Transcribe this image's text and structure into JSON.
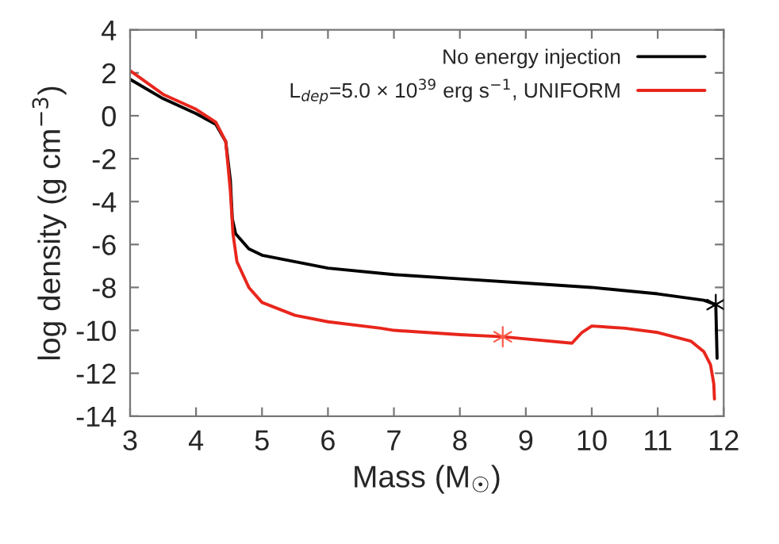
{
  "chart_data": {
    "type": "line",
    "xlabel": "Mass (M$_{☉}$)",
    "ylabel": "log density (g cm$^{−3}$)",
    "xlim": [
      3,
      12
    ],
    "ylim": [
      -14,
      4
    ],
    "xticks": [
      3,
      4,
      5,
      6,
      7,
      8,
      9,
      10,
      11,
      12
    ],
    "yticks": [
      -14,
      -12,
      -10,
      -8,
      -6,
      -4,
      -2,
      0,
      2,
      4
    ],
    "grid": false,
    "legend": "top right",
    "line_style": "solid",
    "marker": "none",
    "series": [
      {
        "name": "No energy injection",
        "color": "#000000",
        "x": [
          3,
          3.5,
          4,
          4.3,
          4.45,
          4.52,
          4.55,
          4.6,
          4.8,
          5,
          6,
          7,
          8,
          9,
          10,
          11,
          11.7,
          11.88,
          11.9
        ],
        "values": [
          1.7,
          0.8,
          0.1,
          -0.4,
          -1.2,
          -3,
          -4.8,
          -5.5,
          -6.2,
          -6.5,
          -7.1,
          -7.4,
          -7.6,
          -7.8,
          -8.0,
          -8.3,
          -8.6,
          -8.8,
          -11.3
        ]
      },
      {
        "name": "L$_{dep}$=5.0 × 10$^{39}$ erg s$^{−1}$, UNIFORM",
        "color": "#e8261c",
        "x": [
          3,
          3.5,
          4,
          4.3,
          4.45,
          4.52,
          4.56,
          4.62,
          4.8,
          5,
          5.5,
          6,
          6.8,
          7,
          8,
          8.65,
          9,
          9.7,
          9.85,
          10,
          10.5,
          11,
          11.5,
          11.7,
          11.8,
          11.85,
          11.86
        ],
        "values": [
          2.1,
          1.0,
          0.3,
          -0.3,
          -1.2,
          -3.5,
          -5.5,
          -6.8,
          -8.0,
          -8.7,
          -9.3,
          -9.6,
          -9.9,
          -10.0,
          -10.2,
          -10.3,
          -10.4,
          -10.6,
          -10.1,
          -9.8,
          -9.9,
          -10.1,
          -10.5,
          -11.0,
          -11.6,
          -12.5,
          -13.2
        ]
      },
      {
        "type": "scatter",
        "marker": "cross",
        "color": "#000000",
        "x": [
          11.88
        ],
        "values": [
          -8.8
        ]
      },
      {
        "type": "scatter",
        "marker": "cross",
        "color": "#ff5a4a",
        "x": [
          8.65
        ],
        "values": [
          -10.3
        ]
      }
    ]
  }
}
